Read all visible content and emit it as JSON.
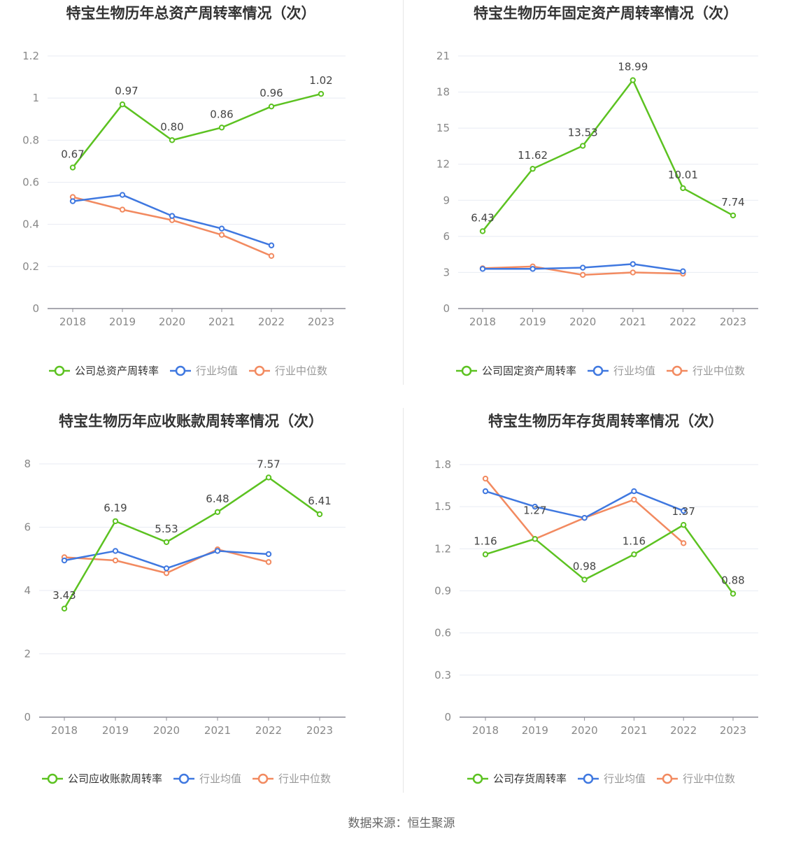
{
  "source": "数据来源：恒生聚源",
  "legend_labels": {
    "avg": "行业均值",
    "median": "行业中位数"
  },
  "colors": {
    "company": "#5cc221",
    "avg": "#3f78e0",
    "median": "#f28a60",
    "grid": "#e8ebf3",
    "axis": "#8c8c96",
    "tick": "#888888",
    "label": "#444444",
    "title": "#333333"
  },
  "chart_data": [
    {
      "type": "line",
      "title": "特宝生物历年总资产周转率情况（次）",
      "categories": [
        "2018",
        "2019",
        "2020",
        "2021",
        "2022",
        "2023"
      ],
      "ylim": [
        0,
        1.2
      ],
      "yticks": [
        "0",
        "0.2",
        "0.4",
        "0.6",
        "0.8",
        "1",
        "1.2"
      ],
      "series": [
        {
          "name": "公司总资产周转率",
          "values": [
            0.67,
            0.97,
            0.8,
            0.86,
            0.96,
            1.02
          ],
          "labels": [
            "0.67",
            "0.97",
            "0.80",
            "0.86",
            "0.96",
            "1.02"
          ]
        },
        {
          "name": "行业均值",
          "values": [
            0.51,
            0.54,
            0.44,
            0.38,
            0.3,
            null
          ]
        },
        {
          "name": "行业中位数",
          "values": [
            0.53,
            0.47,
            0.42,
            0.35,
            0.25,
            null
          ]
        }
      ]
    },
    {
      "type": "line",
      "title": "特宝生物历年固定资产周转率情况（次）",
      "categories": [
        "2018",
        "2019",
        "2020",
        "2021",
        "2022",
        "2023"
      ],
      "ylim": [
        0,
        21
      ],
      "yticks": [
        "0",
        "3",
        "6",
        "9",
        "12",
        "15",
        "18",
        "21"
      ],
      "series": [
        {
          "name": "公司固定资产周转率",
          "values": [
            6.43,
            11.62,
            13.53,
            18.99,
            10.01,
            7.74
          ],
          "labels": [
            "6.43",
            "11.62",
            "13.53",
            "18.99",
            "10.01",
            "7.74"
          ]
        },
        {
          "name": "行业均值",
          "values": [
            3.3,
            3.3,
            3.4,
            3.7,
            3.1,
            null
          ]
        },
        {
          "name": "行业中位数",
          "values": [
            3.35,
            3.5,
            2.8,
            3.0,
            2.9,
            null
          ]
        }
      ]
    },
    {
      "type": "line",
      "title": "特宝生物历年应收账款周转率情况（次）",
      "categories": [
        "2018",
        "2019",
        "2020",
        "2021",
        "2022",
        "2023"
      ],
      "ylim": [
        0,
        8
      ],
      "yticks": [
        "0",
        "2",
        "4",
        "6",
        "8"
      ],
      "series": [
        {
          "name": "公司应收账款周转率",
          "values": [
            3.43,
            6.19,
            5.53,
            6.48,
            7.57,
            6.41
          ],
          "labels": [
            "3.43",
            "6.19",
            "5.53",
            "6.48",
            "7.57",
            "6.41"
          ]
        },
        {
          "name": "行业均值",
          "values": [
            4.95,
            5.25,
            4.7,
            5.25,
            5.15,
            null
          ]
        },
        {
          "name": "行业中位数",
          "values": [
            5.05,
            4.95,
            4.55,
            5.3,
            4.9,
            null
          ]
        }
      ]
    },
    {
      "type": "line",
      "title": "特宝生物历年存货周转率情况（次）",
      "categories": [
        "2018",
        "2019",
        "2020",
        "2021",
        "2022",
        "2023"
      ],
      "ylim": [
        0,
        1.8
      ],
      "yticks": [
        "0",
        "0.3",
        "0.6",
        "0.9",
        "1.2",
        "1.5",
        "1.8"
      ],
      "series": [
        {
          "name": "公司存货周转率",
          "values": [
            1.16,
            1.27,
            0.98,
            1.16,
            1.37,
            0.88
          ],
          "labels": [
            "1.16",
            "1.27",
            "0.98",
            "1.16",
            "1.37",
            "0.88"
          ]
        },
        {
          "name": "行业均值",
          "values": [
            1.61,
            1.5,
            1.42,
            1.61,
            1.47,
            null
          ]
        },
        {
          "name": "行业中位数",
          "values": [
            1.7,
            1.27,
            1.42,
            1.55,
            1.24,
            null
          ]
        }
      ]
    }
  ]
}
